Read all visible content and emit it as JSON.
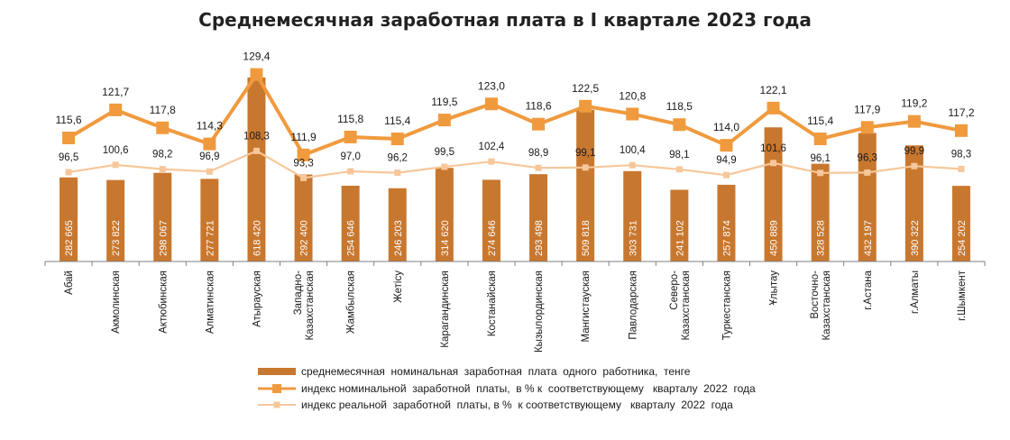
{
  "chart_data": {
    "type": "bar",
    "title": "Среднемесячная заработная плата в I квартале 2023 года",
    "categories": [
      [
        "Абай"
      ],
      [
        "Акмолинская"
      ],
      [
        "Актюбинская"
      ],
      [
        "Алматинская"
      ],
      [
        "Атырауская"
      ],
      [
        "Западно-",
        "Казахстанская"
      ],
      [
        "Жамбылская"
      ],
      [
        "Жетісу"
      ],
      [
        "Карагандинская"
      ],
      [
        "Костанайская"
      ],
      [
        "Кызылординская"
      ],
      [
        "Мангистауская"
      ],
      [
        "Павлодарская"
      ],
      [
        "Северо-",
        "Казахстанская"
      ],
      [
        "Туркестанская"
      ],
      [
        "Ұлытау"
      ],
      [
        "Восточно-",
        "Казахстанская"
      ],
      [
        "г.Астана"
      ],
      [
        "г.Алматы"
      ],
      [
        "г.Шымкент"
      ]
    ],
    "series": [
      {
        "name": "среднемесячная номинальная заработная плата одного работника, тенге",
        "kind": "bar",
        "color": "#c8772e",
        "values": [
          282665,
          273822,
          298067,
          277721,
          618420,
          292400,
          254646,
          246203,
          314620,
          274646,
          293498,
          509818,
          303731,
          241102,
          257874,
          450889,
          328528,
          432197,
          390322,
          254202
        ],
        "labels": [
          "282 665",
          "273 822",
          "298 067",
          "277 721",
          "618 420",
          "292 400",
          "254 646",
          "246 203",
          "314 620",
          "274 646",
          "293 498",
          "509 818",
          "303 731",
          "241 102",
          "257 874",
          "450 889",
          "328 528",
          "432 197",
          "390 322",
          "254 202"
        ]
      },
      {
        "name": "индекс номинальной заработной платы, в % к соответствующему кварталу 2022 года",
        "kind": "line",
        "color": "#f09a3e",
        "values": [
          115.6,
          121.7,
          117.8,
          114.3,
          129.4,
          111.9,
          115.8,
          115.4,
          119.5,
          123.0,
          118.6,
          122.5,
          120.8,
          118.5,
          114.0,
          122.1,
          115.4,
          117.9,
          119.2,
          117.2
        ],
        "labels": [
          "115,6",
          "121,7",
          "117,8",
          "114,3",
          "129,4",
          "111,9",
          "115,8",
          "115,4",
          "119,5",
          "123,0",
          "118,6",
          "122,5",
          "120,8",
          "118,5",
          "114,0",
          "122,1",
          "115,4",
          "117,9",
          "119,2",
          "117,2"
        ]
      },
      {
        "name": "индекс реальной заработной платы, в % к соответствующему кварталу 2022 года",
        "kind": "line",
        "color": "#f6c79a",
        "values": [
          96.5,
          100.6,
          98.2,
          96.9,
          108.3,
          93.3,
          97.0,
          96.2,
          99.5,
          102.4,
          98.9,
          99.1,
          100.4,
          98.1,
          94.9,
          101.6,
          96.1,
          96.3,
          99.9,
          98.3
        ],
        "labels": [
          "96,5",
          "100,6",
          "98,2",
          "96,9",
          "108,3",
          "93,3",
          "97,0",
          "96,2",
          "99,5",
          "102,4",
          "98,9",
          "99,1",
          "100,4",
          "98,1",
          "94,9",
          "101,6",
          "96,1",
          "96,3",
          "99,9",
          "98,3"
        ]
      }
    ],
    "legend": {
      "placement": "bottom",
      "items": [
        "среднемесячная  номинальная  заработная  плата  одного  работника,  тенге",
        "индекс номинальной  заработной  платы,  в % к  соответствующему   кварталу  2022  года",
        "индекс реальной  заработной  платы, в %  к соответствующему   кварталу  2022  года"
      ]
    },
    "grid": false
  }
}
